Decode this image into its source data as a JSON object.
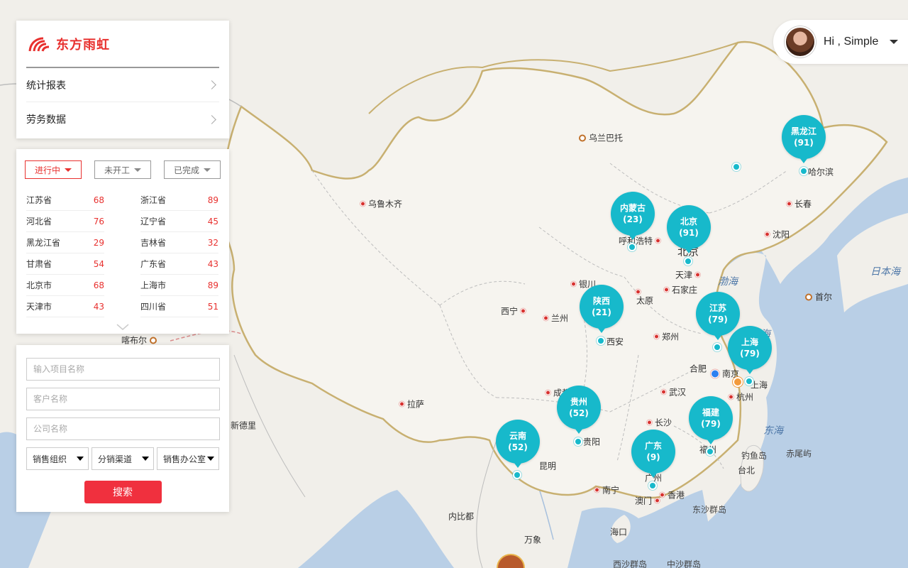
{
  "menu": {
    "logo_text": "东方雨虹",
    "items": [
      {
        "label": "统计报表"
      },
      {
        "label": "劳务数据"
      }
    ]
  },
  "filters": [
    "进行中",
    "未开工",
    "已完成"
  ],
  "stats": [
    {
      "name": "江苏省",
      "value": "68"
    },
    {
      "name": "浙江省",
      "value": "89"
    },
    {
      "name": "河北省",
      "value": "76"
    },
    {
      "name": "辽宁省",
      "value": "45"
    },
    {
      "name": "黑龙江省",
      "value": "29"
    },
    {
      "name": "吉林省",
      "value": "32"
    },
    {
      "name": "甘肃省",
      "value": "54"
    },
    {
      "name": "广东省",
      "value": "43"
    },
    {
      "name": "北京市",
      "value": "68"
    },
    {
      "name": "上海市",
      "value": "89"
    },
    {
      "name": "天津市",
      "value": "43"
    },
    {
      "name": "四川省",
      "value": "51"
    }
  ],
  "search": {
    "project_placeholder": "输入项目名称",
    "customer_placeholder": "客户名称",
    "company_placeholder": "公司名称",
    "selects": [
      "销售组织",
      "分销渠道",
      "销售办公室"
    ],
    "button": "搜索"
  },
  "user": {
    "greeting": "Hi , Simple"
  },
  "pins": [
    {
      "name": "黑龙江",
      "count": "(91)"
    },
    {
      "name": "内蒙古",
      "count": "(23)"
    },
    {
      "name": "北京",
      "count": "(91)"
    },
    {
      "name": "陕西",
      "count": "(21)"
    },
    {
      "name": "江苏",
      "count": "(79)"
    },
    {
      "name": "上海",
      "count": "(79)"
    },
    {
      "name": "贵州",
      "count": "(52)"
    },
    {
      "name": "福建",
      "count": "(79)"
    },
    {
      "name": "云南",
      "count": "(52)"
    },
    {
      "name": "广东",
      "count": "(9)"
    }
  ],
  "map_labels": {
    "cities": [
      "乌兰巴托",
      "哈尔滨",
      "长春",
      "沈阳",
      "乌鲁木齐",
      "呼和浩特",
      "北京",
      "天津",
      "石家庄",
      "太原",
      "银川",
      "西宁",
      "兰州",
      "西安",
      "郑州",
      "合肥",
      "南京",
      "上海",
      "杭州",
      "武汉",
      "成都",
      "长沙",
      "贵阳",
      "昆明",
      "南宁",
      "广州",
      "香港",
      "澳门",
      "福州",
      "台北",
      "海口",
      "拉萨",
      "新德里",
      "喀布尔",
      "内比都",
      "万象",
      "首尔"
    ],
    "seas": [
      "渤海",
      "黄海",
      "东海",
      "日本海"
    ],
    "islands": [
      "钓鱼岛",
      "赤尾屿",
      "东沙群岛",
      "西沙群岛",
      "中沙群岛"
    ]
  }
}
